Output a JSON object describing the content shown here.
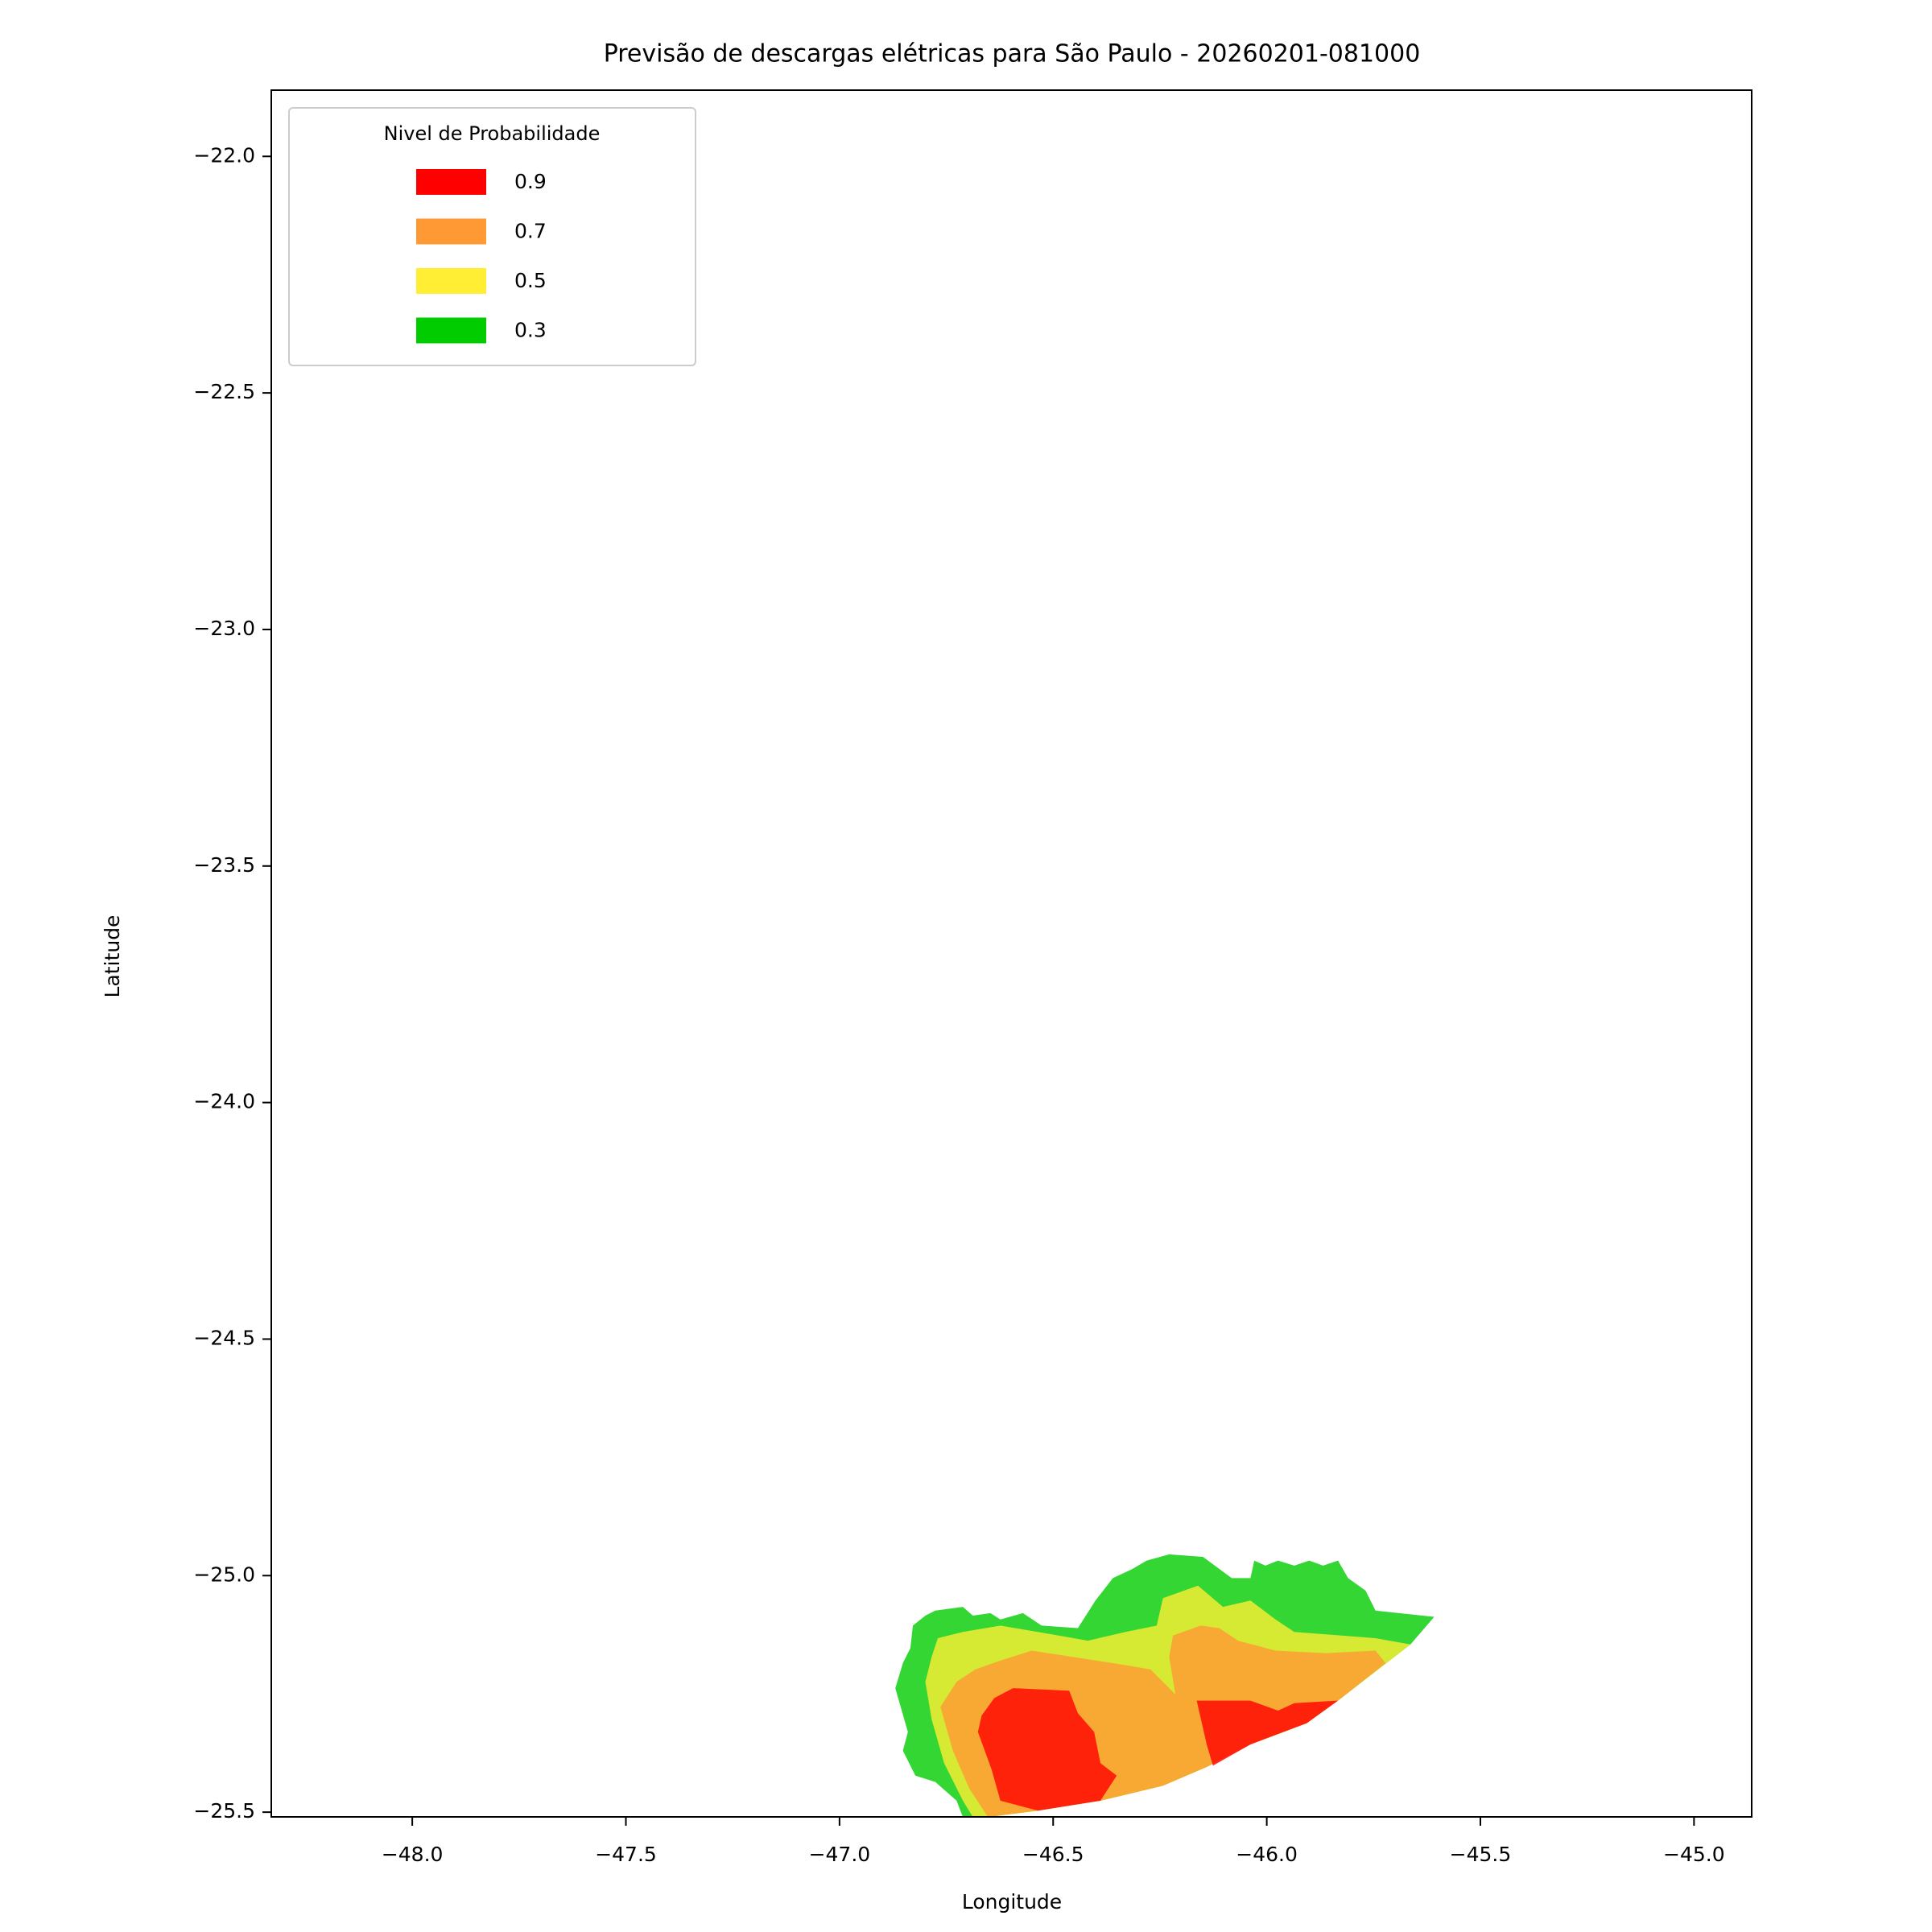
{
  "chart_data": {
    "type": "contourf",
    "title": "Previsão de descargas elétricas para São Paulo - 20260201-081000",
    "xlabel": "Longitude",
    "ylabel": "Latitude",
    "xlim": [
      -48.33,
      -44.865
    ],
    "ylim": [
      -25.51,
      -21.86
    ],
    "xticks": [
      {
        "value": -48.0,
        "label": "−48.0"
      },
      {
        "value": -47.5,
        "label": "−47.5"
      },
      {
        "value": -47.0,
        "label": "−47.0"
      },
      {
        "value": -46.5,
        "label": "−46.5"
      },
      {
        "value": -46.0,
        "label": "−46.0"
      },
      {
        "value": -45.5,
        "label": "−45.5"
      },
      {
        "value": -45.0,
        "label": "−45.0"
      }
    ],
    "yticks": [
      {
        "value": -22.0,
        "label": "−22.0"
      },
      {
        "value": -22.5,
        "label": "−22.5"
      },
      {
        "value": -23.0,
        "label": "−23.0"
      },
      {
        "value": -23.5,
        "label": "−23.5"
      },
      {
        "value": -24.0,
        "label": "−24.0"
      },
      {
        "value": -24.5,
        "label": "−24.5"
      },
      {
        "value": -25.0,
        "label": "−25.0"
      },
      {
        "value": -25.5,
        "label": "−25.5"
      }
    ],
    "legend_title": "Nivel de Probabilidade",
    "legend": "upper left",
    "alpha": 0.8,
    "series": [
      {
        "name": "0.9",
        "level": 0.9,
        "color": "#ff0000"
      },
      {
        "name": "0.7",
        "level": 0.7,
        "color": "#ff9933"
      },
      {
        "name": "0.5",
        "level": 0.5,
        "color": "#ffee33"
      },
      {
        "name": "0.3",
        "level": 0.3,
        "color": "#00cc00"
      }
    ]
  }
}
